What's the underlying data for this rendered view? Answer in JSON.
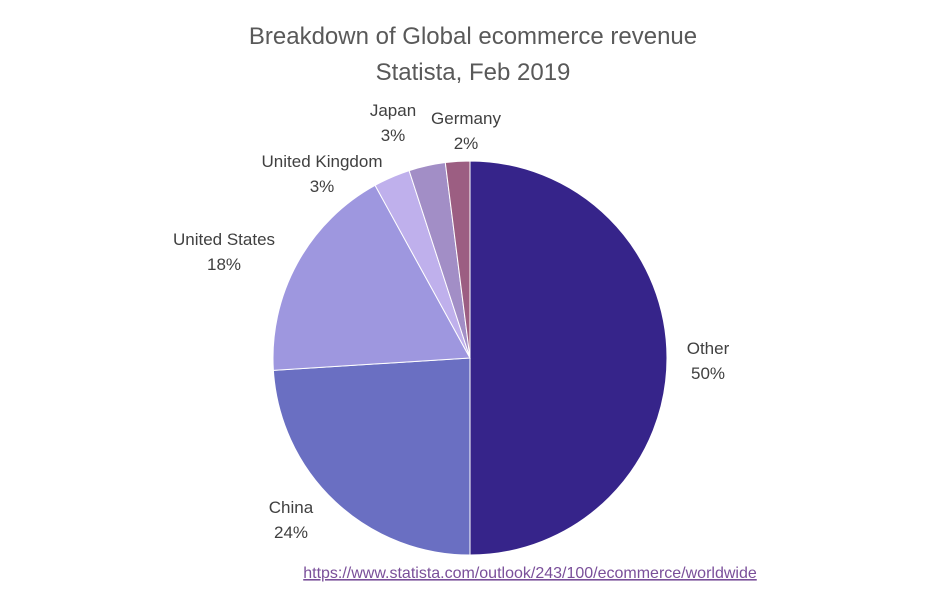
{
  "chart_data": {
    "type": "pie",
    "title": "Breakdown of Global ecommerce revenue",
    "subtitle": "Statista, Feb 2019",
    "slices": [
      {
        "label": "Other",
        "value": 50,
        "display": "50%",
        "color": "#36248a"
      },
      {
        "label": "China",
        "value": 24,
        "display": "24%",
        "color": "#6a6fc2"
      },
      {
        "label": "United States",
        "value": 18,
        "display": "18%",
        "color": "#9e97df"
      },
      {
        "label": "United Kingdom",
        "value": 3,
        "display": "3%",
        "color": "#bfb0ec"
      },
      {
        "label": "Japan",
        "value": 3,
        "display": "3%",
        "color": "#a28ec6"
      },
      {
        "label": "Germany",
        "value": 2,
        "display": "2%",
        "color": "#9c5e82"
      }
    ],
    "legend": "none"
  },
  "source_link": "https://www.statista.com/outlook/243/100/ecommerce/worldwide"
}
